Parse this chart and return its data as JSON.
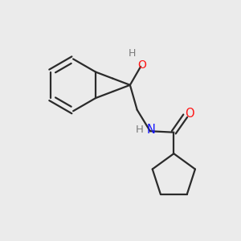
{
  "background_color": "#ebebeb",
  "bond_color": "#2b2b2b",
  "nitrogen_color": "#1414ff",
  "oxygen_color": "#ff1414",
  "hydrogen_color": "#7a7a7a",
  "line_width": 1.6,
  "figsize": [
    3.0,
    3.0
  ],
  "dpi": 100,
  "xlim": [
    0,
    10
  ],
  "ylim": [
    0,
    10
  ]
}
